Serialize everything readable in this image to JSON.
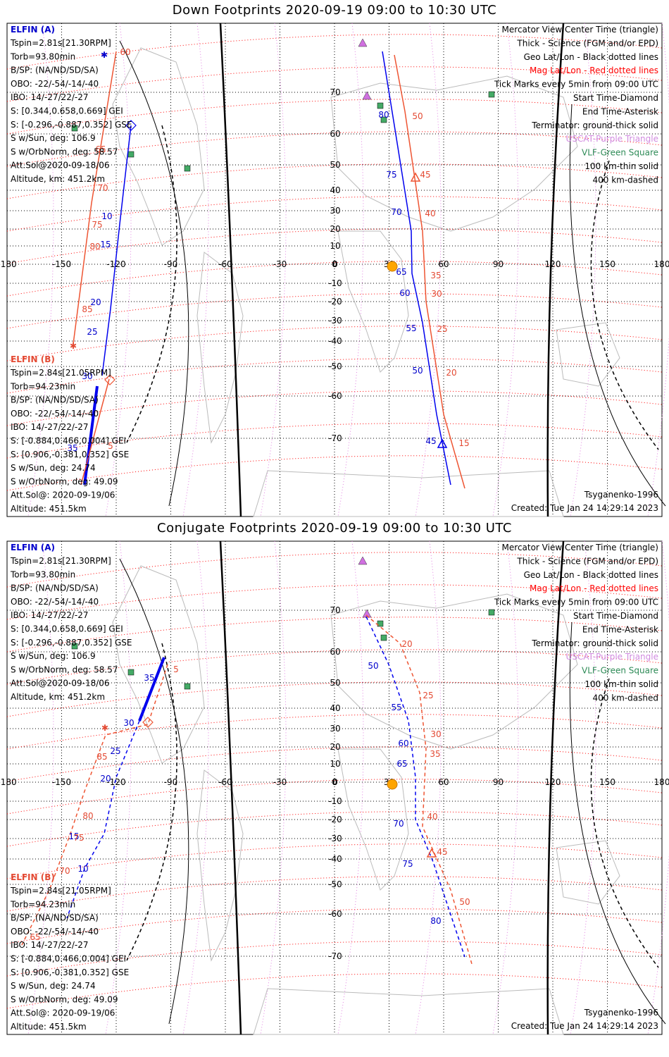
{
  "panels": [
    {
      "id": "down",
      "title": "Down Footprints 2020-09-19 09:00 to 10:30 UTC",
      "elfin_a": {
        "name": "ELFIN (A)",
        "lines": [
          "Tspin=2.81s[21.30RPM]",
          "Torb=93.80min",
          "B/SP: (NA/ND/SD/SA)",
          "OBO: -22/-54/-14/-40",
          "IBO: 14/-27/22/-27",
          "S: [0.344,0.658,0.669] GEI",
          "S: [-0.296,-0.887,0.352] GSE",
          "S w/Sun, deg: 106.9",
          "S w/OrbNorm, deg: 58.57",
          "Att.Sol@2020-09-18/06",
          "Altitude, km: 451.2km"
        ]
      },
      "elfin_b": {
        "name": "ELFIN (B)",
        "lines": [
          "Tspin=2.84s[21.05RPM]",
          "Torb=94.23min",
          "B/SP: (NA/ND/SD/SA)",
          "OBO: -22/-54/-14/-40",
          "IBO: 14/-27/22/-27",
          "S: [-0.884,0.466,0.004] GEI",
          "S: [0.906,-0.381,0.352] GSE",
          "S w/Sun, deg: 24.74",
          "S w/OrbNorm, deg: 49.09",
          "Att.Sol@: 2020-09-19/06",
          "Altitude: 451.5km"
        ]
      },
      "legend": [
        {
          "text": "Mercator View Center Time (triangle)",
          "color": "black"
        },
        {
          "text": "Thick - Science (FGM and/or EPD)",
          "color": "black"
        },
        {
          "text": "Geo Lat/Lon - Black dotted lines",
          "color": "black"
        },
        {
          "text": "Mag Lat/Lon - Red dotted lines",
          "color": "redline"
        },
        {
          "text": "Tick Marks every 5min from 09:00 UTC",
          "color": "black"
        },
        {
          "text": "Start Time-Diamond",
          "color": "black"
        },
        {
          "text": "End Time-Asterisk",
          "color": "black"
        },
        {
          "text": "Terminator: ground-thick solid",
          "color": "black"
        },
        {
          "text": "USCAT-Purple Triangle",
          "color": "violet"
        },
        {
          "text": "VLF-Green Square",
          "color": "green"
        },
        {
          "text": "100 km-thin solid",
          "color": "black"
        },
        {
          "text": "400 km-dashed",
          "color": "black"
        }
      ],
      "model": "Tsyganenko-1996",
      "created": "Created: Tue Jan 24 14:29:14 2023",
      "lon_ticks": [
        "-180",
        "-150",
        "-120",
        "-90",
        "-60",
        "-30",
        "0",
        "30",
        "60",
        "90",
        "120",
        "150",
        "180"
      ],
      "lat_ticks": [
        "70",
        "60",
        "50",
        "40",
        "30",
        "20",
        "10",
        "0",
        "-10",
        "-20",
        "-30",
        "-40",
        "-50",
        "-60",
        "-70"
      ],
      "tick_labels_blue": [
        "80",
        "75",
        "70",
        "65",
        "60",
        "55",
        "50",
        "45",
        "10",
        "15",
        "20",
        "25",
        "30",
        "35"
      ],
      "tick_labels_red": [
        "60",
        "50",
        "45",
        "40",
        "35",
        "30",
        "25",
        "20",
        "15",
        "65",
        "70",
        "75",
        "80",
        "85",
        "5"
      ]
    },
    {
      "id": "conj",
      "title": "Conjugate Footprints 2020-09-19 09:00 to 10:30 UTC",
      "elfin_a": {
        "name": "ELFIN (A)",
        "lines": [
          "Tspin=2.81s[21.30RPM]",
          "Torb=93.80min",
          "B/SP: (NA/ND/SD/SA)",
          "OBO: -22/-54/-14/-40",
          "IBO: 14/-27/22/-27",
          "S: [0.344,0.658,0.669] GEI",
          "S: [-0.296,-0.887,0.352] GSE",
          "S w/Sun, deg: 106.9",
          "S w/OrbNorm, deg: 58.57",
          "Att.Sol@2020-09-18/06",
          "Altitude, km: 451.2km"
        ]
      },
      "elfin_b": {
        "name": "ELFIN (B)",
        "lines": [
          "Tspin=2.84s[21.05RPM]",
          "Torb=94.23min",
          "B/SP: (NA/ND/SD/SA)",
          "OBO: -22/-54/-14/-40",
          "IBO: 14/-27/22/-27",
          "S: [-0.884,0.466,0.004] GEI",
          "S: [0.906,-0.381,0.352] GSE",
          "S w/Sun, deg: 24.74",
          "S w/OrbNorm, deg: 49.09",
          "Att.Sol@: 2020-09-19/06",
          "Altitude: 451.5km"
        ]
      },
      "legend": [
        {
          "text": "Mercator View Center Time (triangle)",
          "color": "black"
        },
        {
          "text": "Thick - Science (FGM and/or EPD)",
          "color": "black"
        },
        {
          "text": "Geo Lat/Lon - Black dotted lines",
          "color": "black"
        },
        {
          "text": "Mag Lat/Lon - Red dotted lines",
          "color": "redline"
        },
        {
          "text": "Tick Marks every 5min from 09:00 UTC",
          "color": "black"
        },
        {
          "text": "Start Time-Diamond",
          "color": "black"
        },
        {
          "text": "End Time-Asterisk",
          "color": "black"
        },
        {
          "text": "Terminator: ground-thick solid",
          "color": "black"
        },
        {
          "text": "USCAT-Purple Triangle",
          "color": "violet"
        },
        {
          "text": "VLF-Green Square",
          "color": "green"
        },
        {
          "text": "100 km-thin solid",
          "color": "black"
        },
        {
          "text": "400 km-dashed",
          "color": "black"
        }
      ],
      "model": "Tsyganenko-1996",
      "created": "Created: Tue Jan 24 14:29:14 2023",
      "lon_ticks": [
        "-180",
        "-150",
        "-120",
        "-90",
        "-60",
        "-30",
        "0",
        "30",
        "60",
        "90",
        "120",
        "150",
        "180"
      ],
      "lat_ticks": [
        "70",
        "60",
        "50",
        "40",
        "30",
        "20",
        "10",
        "0",
        "-10",
        "-20",
        "-30",
        "-40",
        "-50",
        "-60",
        "-70"
      ],
      "tick_labels_blue": [
        "50",
        "55",
        "60",
        "65",
        "70",
        "75",
        "80",
        "35",
        "30",
        "25",
        "20",
        "15",
        "10"
      ],
      "tick_labels_red": [
        "20",
        "25",
        "30",
        "35",
        "40",
        "45",
        "50",
        "5",
        "85",
        "80",
        "75",
        "70",
        "65"
      ]
    }
  ],
  "colors": {
    "elfin_a": "#0000ee",
    "elfin_b": "#ee5533",
    "mag_grid": "#ff0000",
    "geo_grid": "#000000",
    "uscat": "#d070e0",
    "vlf": "#44aa66",
    "sun": "#ffa500",
    "coast": "#bbbbbb"
  }
}
